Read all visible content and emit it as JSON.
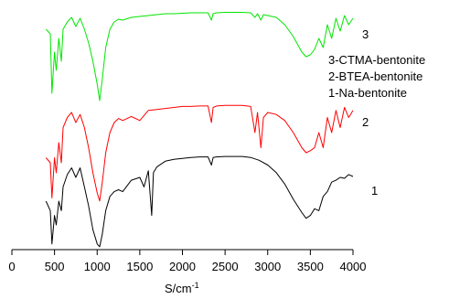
{
  "chart_data": {
    "type": "line",
    "title": "",
    "xlabel": "S/cm",
    "xlabel_superscript": "-1",
    "ylabel": "",
    "xlim": [
      400,
      4000
    ],
    "x_ticks": [
      0,
      500,
      1000,
      1500,
      2000,
      2500,
      3000,
      3500,
      4000
    ],
    "x_tick_labels": [
      "0",
      "500",
      "1000",
      "1500",
      "2000",
      "2500",
      "3000",
      "3500",
      "4000"
    ],
    "y_axis_visible": false,
    "grid": false,
    "legend": {
      "placement": "right",
      "entries": [
        "3-CTMA-bentonite",
        "2-BTEA-bentonite",
        "1-Na-bentonite"
      ]
    },
    "series": [
      {
        "name": "3",
        "color": "#00e600",
        "x": [
          400,
          450,
          470,
          500,
          520,
          550,
          580,
          600,
          650,
          700,
          750,
          800,
          850,
          900,
          950,
          1000,
          1030,
          1060,
          1100,
          1150,
          1200,
          1250,
          1300,
          1400,
          1500,
          1600,
          1700,
          1800,
          1900,
          2000,
          2100,
          2200,
          2300,
          2340,
          2360,
          2400,
          2500,
          2600,
          2700,
          2800,
          2850,
          2880,
          2920,
          2950,
          3000,
          3100,
          3200,
          3300,
          3400,
          3450,
          3500,
          3550,
          3600,
          3650,
          3700,
          3750,
          3800,
          3850,
          3900,
          3950,
          4000
        ],
        "y": [
          0.8,
          0.75,
          0.1,
          0.55,
          0.35,
          0.7,
          0.45,
          0.8,
          0.88,
          0.93,
          0.83,
          0.92,
          0.8,
          0.65,
          0.45,
          0.2,
          0.02,
          0.25,
          0.6,
          0.8,
          0.88,
          0.91,
          0.9,
          0.93,
          0.94,
          0.95,
          0.96,
          0.97,
          0.97,
          0.975,
          0.98,
          0.98,
          0.98,
          0.9,
          0.97,
          0.98,
          0.985,
          0.985,
          0.985,
          0.98,
          0.93,
          0.97,
          0.9,
          0.96,
          0.95,
          0.93,
          0.85,
          0.72,
          0.55,
          0.5,
          0.52,
          0.58,
          0.7,
          0.6,
          0.85,
          0.7,
          0.92,
          0.78,
          0.95,
          0.85,
          0.92
        ]
      },
      {
        "name": "2",
        "color": "#ff0000",
        "x": [
          400,
          450,
          470,
          500,
          520,
          550,
          580,
          600,
          650,
          700,
          750,
          800,
          850,
          900,
          950,
          1000,
          1030,
          1060,
          1100,
          1150,
          1200,
          1250,
          1300,
          1400,
          1500,
          1600,
          1700,
          1800,
          1900,
          2000,
          2100,
          2200,
          2300,
          2340,
          2360,
          2400,
          2500,
          2600,
          2700,
          2800,
          2850,
          2880,
          2920,
          2950,
          3000,
          3100,
          3200,
          3300,
          3400,
          3450,
          3500,
          3550,
          3600,
          3650,
          3700,
          3750,
          3800,
          3850,
          3900,
          3950,
          4000
        ],
        "y": [
          0.45,
          0.4,
          0.05,
          0.45,
          0.3,
          0.6,
          0.4,
          0.75,
          0.85,
          0.9,
          0.8,
          0.88,
          0.75,
          0.55,
          0.3,
          0.1,
          0.02,
          0.2,
          0.5,
          0.7,
          0.8,
          0.84,
          0.82,
          0.86,
          0.82,
          0.92,
          0.93,
          0.94,
          0.95,
          0.96,
          0.96,
          0.965,
          0.965,
          0.8,
          0.95,
          0.965,
          0.97,
          0.97,
          0.97,
          0.96,
          0.7,
          0.9,
          0.55,
          0.85,
          0.9,
          0.88,
          0.82,
          0.7,
          0.55,
          0.5,
          0.52,
          0.55,
          0.7,
          0.55,
          0.85,
          0.7,
          0.92,
          0.75,
          0.95,
          0.85,
          0.92
        ]
      },
      {
        "name": "1",
        "color": "#000000",
        "x": [
          400,
          450,
          470,
          500,
          520,
          550,
          580,
          600,
          650,
          700,
          750,
          800,
          850,
          900,
          950,
          1000,
          1030,
          1060,
          1100,
          1150,
          1200,
          1250,
          1300,
          1400,
          1500,
          1550,
          1600,
          1640,
          1660,
          1700,
          1800,
          1900,
          2000,
          2100,
          2200,
          2300,
          2340,
          2360,
          2400,
          2500,
          2600,
          2700,
          2800,
          2900,
          3000,
          3100,
          3200,
          3300,
          3400,
          3450,
          3500,
          3550,
          3600,
          3650,
          3700,
          3750,
          3800,
          3850,
          3900,
          3950,
          4000
        ],
        "y": [
          0.5,
          0.4,
          0.05,
          0.35,
          0.25,
          0.5,
          0.4,
          0.65,
          0.78,
          0.85,
          0.75,
          0.85,
          0.65,
          0.45,
          0.2,
          0.05,
          0.02,
          0.15,
          0.4,
          0.55,
          0.6,
          0.62,
          0.6,
          0.72,
          0.75,
          0.65,
          0.82,
          0.35,
          0.8,
          0.86,
          0.92,
          0.94,
          0.95,
          0.96,
          0.965,
          0.965,
          0.88,
          0.96,
          0.965,
          0.97,
          0.97,
          0.97,
          0.96,
          0.93,
          0.88,
          0.8,
          0.68,
          0.52,
          0.38,
          0.32,
          0.35,
          0.42,
          0.4,
          0.55,
          0.6,
          0.7,
          0.72,
          0.75,
          0.74,
          0.78,
          0.76
        ]
      }
    ]
  }
}
